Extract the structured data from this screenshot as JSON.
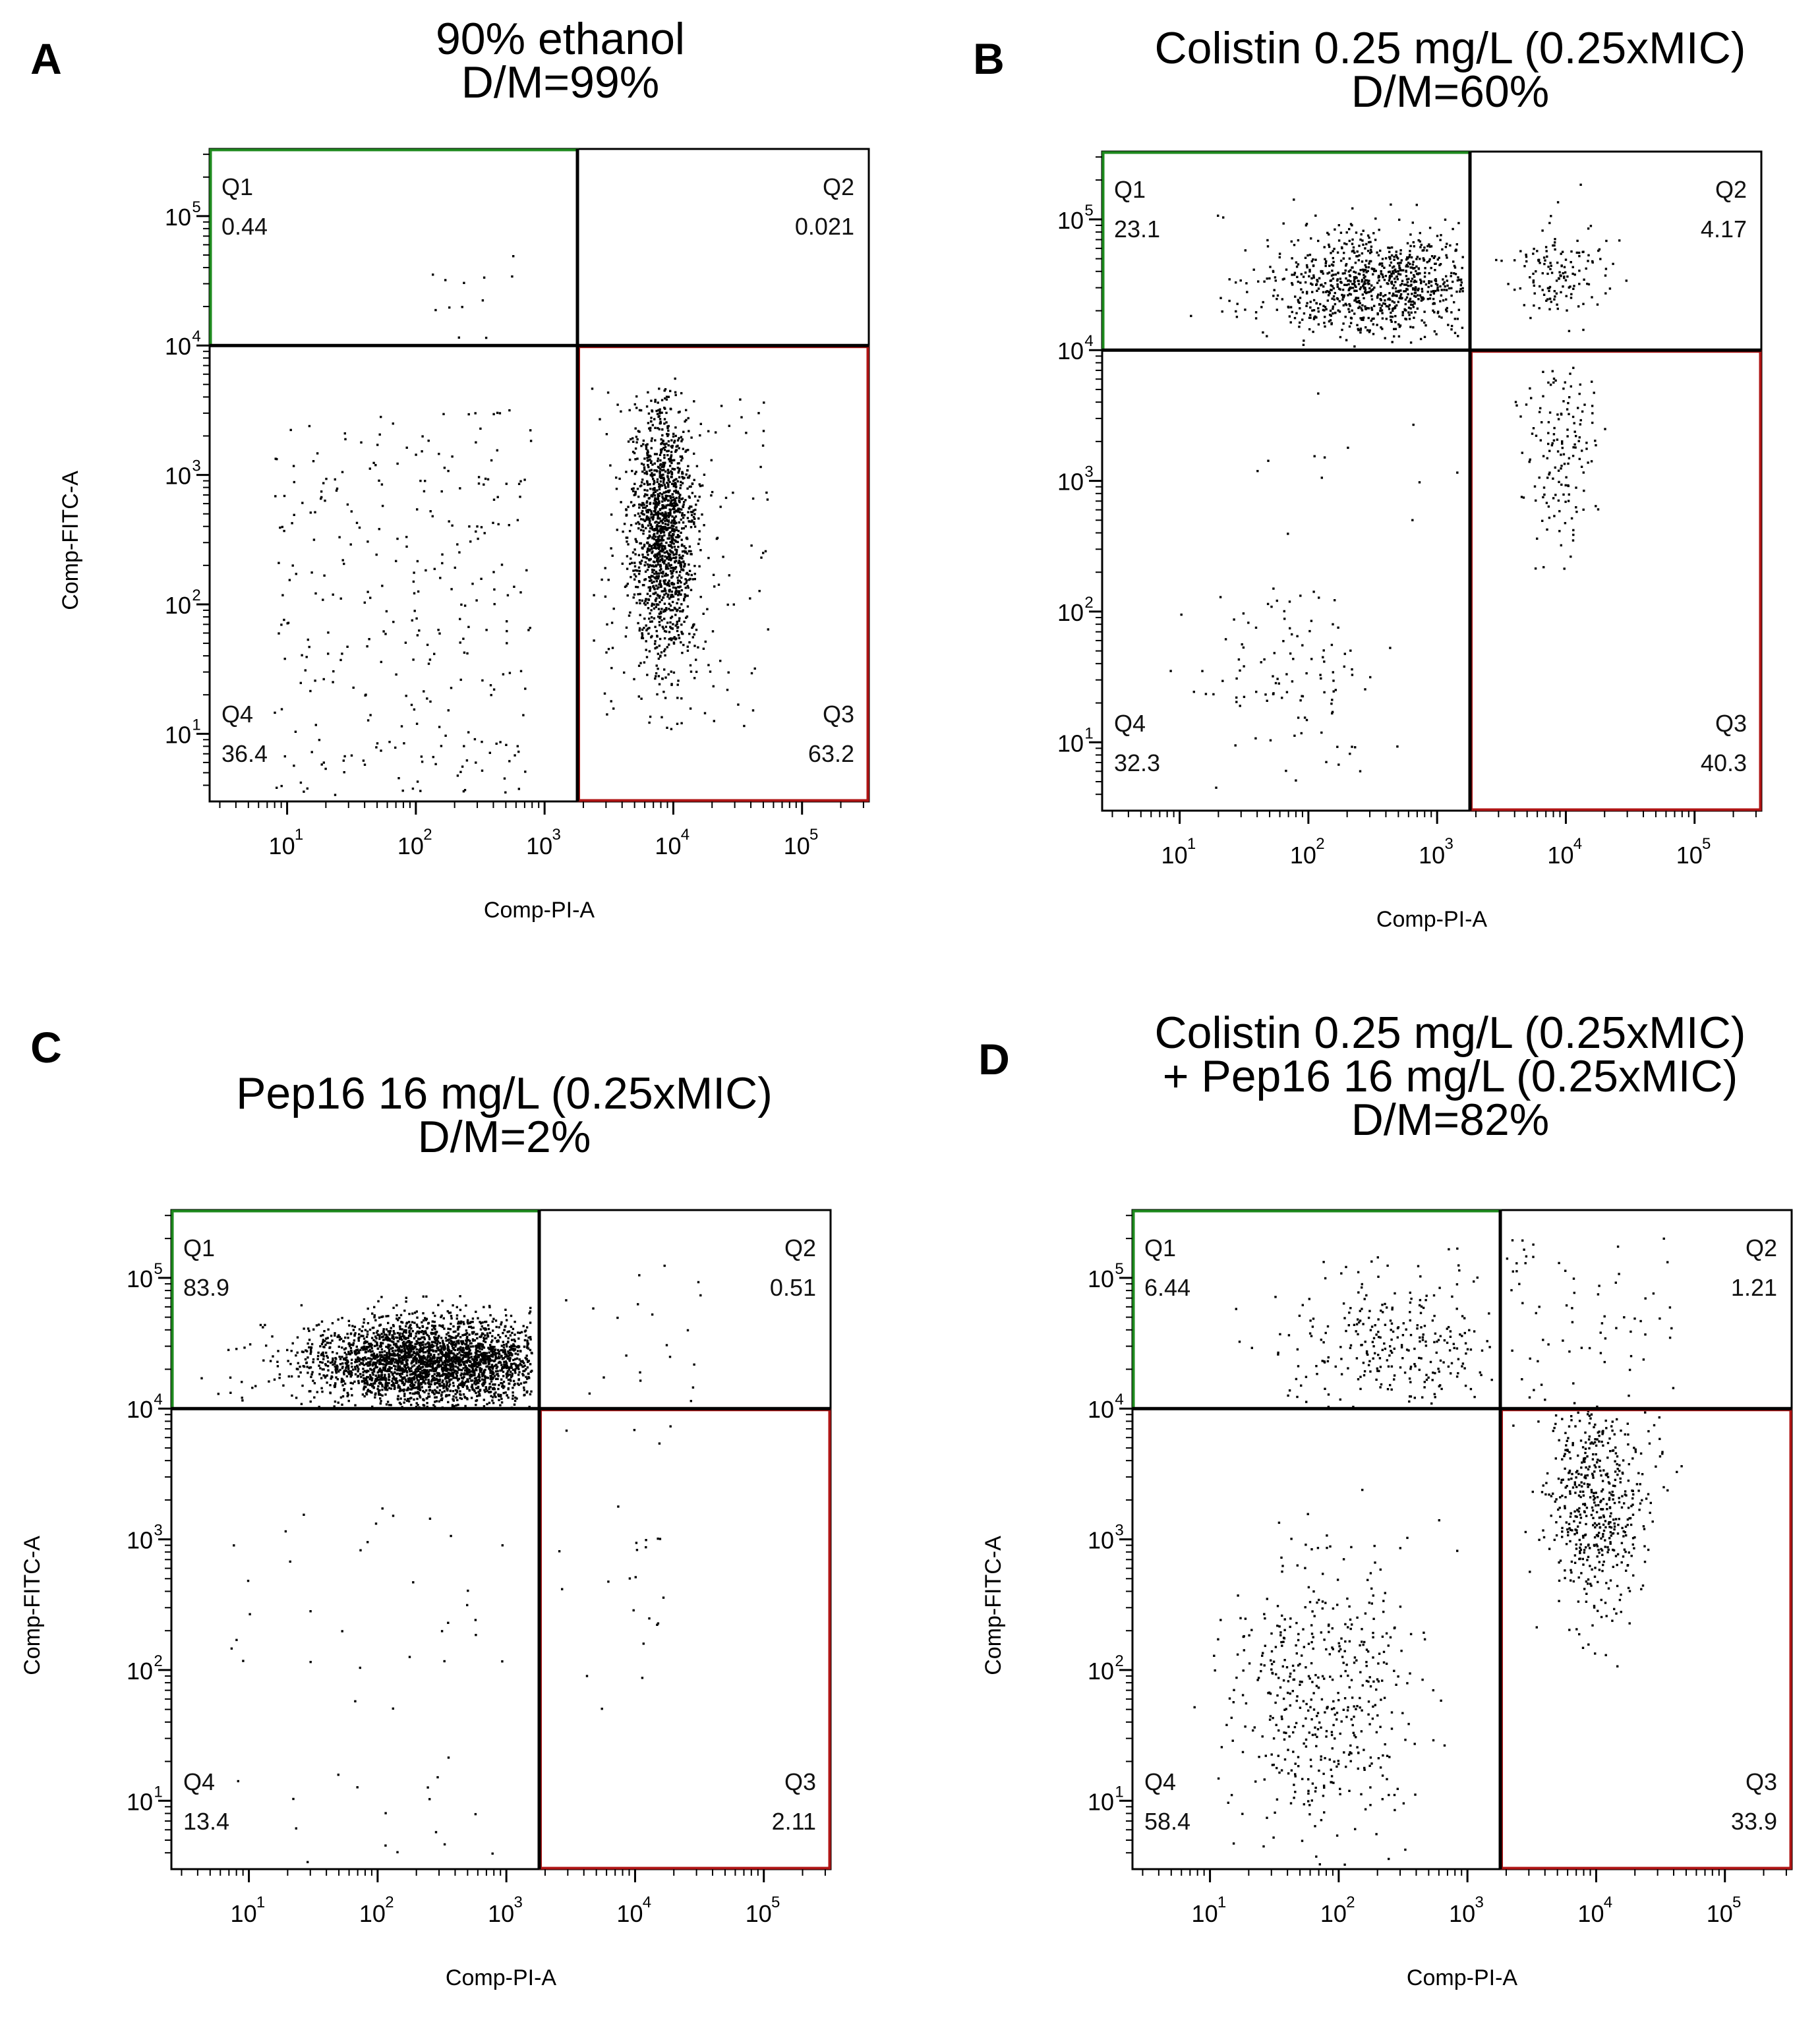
{
  "figure": {
    "background": "#ffffff"
  },
  "colors": {
    "q1_gate": "#1e8a1e",
    "q3_gate": "#b01515",
    "frame": "#000000",
    "dots": "#000000"
  },
  "chart_data": [
    {
      "type": "scatter",
      "panel_label": "A",
      "title_lines": [
        "90% ethanol",
        "D/M=99%"
      ],
      "xlabel": "Comp-PI-A",
      "ylabel": "Comp-FITC-A",
      "x_scale": "log",
      "y_scale": "log",
      "xlim": [
        2.5,
        330000
      ],
      "ylim": [
        3,
        330000
      ],
      "xticks": [
        {
          "base": "10",
          "exp": "1"
        },
        {
          "base": "10",
          "exp": "2"
        },
        {
          "base": "10",
          "exp": "3"
        },
        {
          "base": "10",
          "exp": "4"
        },
        {
          "base": "10",
          "exp": "5"
        }
      ],
      "yticks": [
        {
          "base": "10",
          "exp": "1"
        },
        {
          "base": "10",
          "exp": "2"
        },
        {
          "base": "10",
          "exp": "3"
        },
        {
          "base": "10",
          "exp": "4"
        },
        {
          "base": "10",
          "exp": "5"
        }
      ],
      "quadrant_gates": {
        "x_threshold": 1800,
        "y_threshold": 10000
      },
      "quadrants": [
        {
          "id": "Q1",
          "value": "0.44",
          "position": "top-left"
        },
        {
          "id": "Q2",
          "value": "0.021",
          "position": "top-right"
        },
        {
          "id": "Q3",
          "value": "63.2",
          "position": "bottom-right"
        },
        {
          "id": "Q4",
          "value": "36.4",
          "position": "bottom-left"
        }
      ],
      "populations": [
        {
          "quadrant": "Q4",
          "n": 300,
          "log_x": [
            0.9,
            2.9
          ],
          "log_y": [
            0.5,
            3.5
          ],
          "shape": "uniform"
        },
        {
          "quadrant": "Q1",
          "n": 12,
          "log_x": [
            2.0,
            2.9
          ],
          "log_y": [
            4.05,
            4.7
          ],
          "shape": "uniform"
        },
        {
          "quadrant": "Q3",
          "n": 1400,
          "log_x": [
            3.35,
            4.75
          ],
          "log_y": [
            0.6,
            3.75
          ],
          "shape": "gaussian",
          "center_log": [
            3.92,
            2.55
          ],
          "sd_log": [
            0.12,
            0.48
          ]
        },
        {
          "quadrant": "Q3",
          "n": 150,
          "log_x": [
            3.35,
            4.75
          ],
          "log_y": [
            1.0,
            3.7
          ],
          "shape": "uniform"
        }
      ]
    },
    {
      "type": "scatter",
      "panel_label": "B",
      "title_lines": [
        "Colistin 0.25 mg/L (0.25xMIC)",
        "D/M=60%"
      ],
      "xlabel": "Comp-PI-A",
      "ylabel": "",
      "x_scale": "log",
      "y_scale": "log",
      "xlim": [
        2.5,
        330000
      ],
      "ylim": [
        3,
        330000
      ],
      "xticks": [
        {
          "base": "10",
          "exp": "1"
        },
        {
          "base": "10",
          "exp": "2"
        },
        {
          "base": "10",
          "exp": "3"
        },
        {
          "base": "10",
          "exp": "4"
        },
        {
          "base": "10",
          "exp": "5"
        }
      ],
      "yticks": [
        {
          "base": "10",
          "exp": "1"
        },
        {
          "base": "10",
          "exp": "2"
        },
        {
          "base": "10",
          "exp": "3"
        },
        {
          "base": "10",
          "exp": "4"
        },
        {
          "base": "10",
          "exp": "5"
        }
      ],
      "quadrant_gates": {
        "x_threshold": 1800,
        "y_threshold": 10000
      },
      "quadrants": [
        {
          "id": "Q1",
          "value": "23.1",
          "position": "top-left"
        },
        {
          "id": "Q2",
          "value": "4.17",
          "position": "top-right"
        },
        {
          "id": "Q3",
          "value": "40.3",
          "position": "bottom-right"
        },
        {
          "id": "Q4",
          "value": "32.3",
          "position": "bottom-left"
        }
      ],
      "populations": [
        {
          "quadrant": "Q1",
          "n": 900,
          "log_x": [
            0.9,
            3.2
          ],
          "log_y": [
            4.0,
            5.35
          ],
          "shape": "gaussian",
          "center_log": [
            2.55,
            4.5
          ],
          "sd_log": [
            0.45,
            0.2
          ]
        },
        {
          "quadrant": "Q2",
          "n": 140,
          "log_x": [
            3.3,
            4.7
          ],
          "log_y": [
            4.0,
            5.3
          ],
          "shape": "gaussian",
          "center_log": [
            3.95,
            4.62
          ],
          "sd_log": [
            0.2,
            0.18
          ]
        },
        {
          "quadrant": "Q3",
          "n": 150,
          "log_x": [
            3.4,
            4.4
          ],
          "log_y": [
            2.3,
            3.95
          ],
          "shape": "gaussian",
          "center_log": [
            3.95,
            3.3
          ],
          "sd_log": [
            0.15,
            0.4
          ]
        },
        {
          "quadrant": "Q4",
          "n": 110,
          "log_x": [
            0.9,
            3.0
          ],
          "log_y": [
            0.5,
            2.3
          ],
          "shape": "gaussian",
          "center_log": [
            1.9,
            1.5
          ],
          "sd_log": [
            0.35,
            0.4
          ]
        },
        {
          "quadrant": "Q4",
          "n": 12,
          "log_x": [
            1.5,
            3.2
          ],
          "log_y": [
            2.3,
            3.9
          ],
          "shape": "uniform"
        }
      ]
    },
    {
      "type": "scatter",
      "panel_label": "C",
      "title_lines": [
        "Pep16 16 mg/L (0.25xMIC)",
        "D/M=2%"
      ],
      "xlabel": "Comp-PI-A",
      "ylabel": "Comp-FITC-A",
      "x_scale": "log",
      "y_scale": "log",
      "xlim": [
        2.5,
        330000
      ],
      "ylim": [
        3,
        330000
      ],
      "xticks": [
        {
          "base": "10",
          "exp": "1"
        },
        {
          "base": "10",
          "exp": "2"
        },
        {
          "base": "10",
          "exp": "3"
        },
        {
          "base": "10",
          "exp": "4"
        },
        {
          "base": "10",
          "exp": "5"
        }
      ],
      "yticks": [
        {
          "base": "10",
          "exp": "1"
        },
        {
          "base": "10",
          "exp": "2"
        },
        {
          "base": "10",
          "exp": "3"
        },
        {
          "base": "10",
          "exp": "4"
        },
        {
          "base": "10",
          "exp": "5"
        }
      ],
      "quadrant_gates": {
        "x_threshold": 1800,
        "y_threshold": 10000
      },
      "quadrants": [
        {
          "id": "Q1",
          "value": "83.9",
          "position": "top-left"
        },
        {
          "id": "Q2",
          "value": "0.51",
          "position": "top-right"
        },
        {
          "id": "Q3",
          "value": "2.11",
          "position": "bottom-right"
        },
        {
          "id": "Q4",
          "value": "13.4",
          "position": "bottom-left"
        }
      ],
      "populations": [
        {
          "quadrant": "Q1",
          "n": 2800,
          "log_x": [
            0.5,
            3.2
          ],
          "log_y": [
            4.0,
            5.35
          ],
          "shape": "gaussian",
          "center_log": [
            2.45,
            4.35
          ],
          "sd_log": [
            0.5,
            0.17
          ]
        },
        {
          "quadrant": "Q2",
          "n": 20,
          "log_x": [
            3.4,
            4.6
          ],
          "log_y": [
            4.05,
            5.3
          ],
          "shape": "uniform"
        },
        {
          "quadrant": "Q3",
          "n": 25,
          "log_x": [
            3.4,
            4.3
          ],
          "log_y": [
            1.5,
            3.9
          ],
          "shape": "uniform"
        },
        {
          "quadrant": "Q4",
          "n": 50,
          "log_x": [
            0.8,
            3.0
          ],
          "log_y": [
            0.5,
            3.3
          ],
          "shape": "uniform"
        }
      ]
    },
    {
      "type": "scatter",
      "panel_label": "D",
      "title_lines": [
        "Colistin 0.25 mg/L (0.25xMIC)",
        "+ Pep16 16 mg/L (0.25xMIC)",
        "D/M=82%"
      ],
      "xlabel": "Comp-PI-A",
      "ylabel": "Comp-FITC-A",
      "x_scale": "log",
      "y_scale": "log",
      "xlim": [
        2.5,
        330000
      ],
      "ylim": [
        3,
        330000
      ],
      "xticks": [
        {
          "base": "10",
          "exp": "1"
        },
        {
          "base": "10",
          "exp": "2"
        },
        {
          "base": "10",
          "exp": "3"
        },
        {
          "base": "10",
          "exp": "4"
        },
        {
          "base": "10",
          "exp": "5"
        }
      ],
      "yticks": [
        {
          "base": "10",
          "exp": "1"
        },
        {
          "base": "10",
          "exp": "2"
        },
        {
          "base": "10",
          "exp": "3"
        },
        {
          "base": "10",
          "exp": "4"
        },
        {
          "base": "10",
          "exp": "5"
        }
      ],
      "quadrant_gates": {
        "x_threshold": 1800,
        "y_threshold": 10000
      },
      "quadrants": [
        {
          "id": "Q1",
          "value": "6.44",
          "position": "top-left"
        },
        {
          "id": "Q2",
          "value": "1.21",
          "position": "top-right"
        },
        {
          "id": "Q3",
          "value": "33.9",
          "position": "bottom-right"
        },
        {
          "id": "Q4",
          "value": "58.4",
          "position": "bottom-left"
        }
      ],
      "populations": [
        {
          "quadrant": "Q1",
          "n": 280,
          "log_x": [
            1.2,
            3.2
          ],
          "log_y": [
            4.0,
            5.35
          ],
          "shape": "gaussian",
          "center_log": [
            2.5,
            4.5
          ],
          "sd_log": [
            0.45,
            0.3
          ]
        },
        {
          "quadrant": "Q2",
          "n": 70,
          "log_x": [
            3.3,
            4.6
          ],
          "log_y": [
            4.0,
            5.3
          ],
          "shape": "uniform"
        },
        {
          "quadrant": "Q3",
          "n": 520,
          "log_x": [
            3.3,
            4.7
          ],
          "log_y": [
            1.2,
            3.98
          ],
          "shape": "gaussian",
          "center_log": [
            4.0,
            3.3
          ],
          "sd_log": [
            0.2,
            0.45
          ]
        },
        {
          "quadrant": "Q4",
          "n": 480,
          "log_x": [
            0.8,
            3.2
          ],
          "log_y": [
            0.5,
            3.8
          ],
          "shape": "gaussian",
          "center_log": [
            1.9,
            1.8
          ],
          "sd_log": [
            0.38,
            0.55
          ]
        }
      ]
    }
  ]
}
